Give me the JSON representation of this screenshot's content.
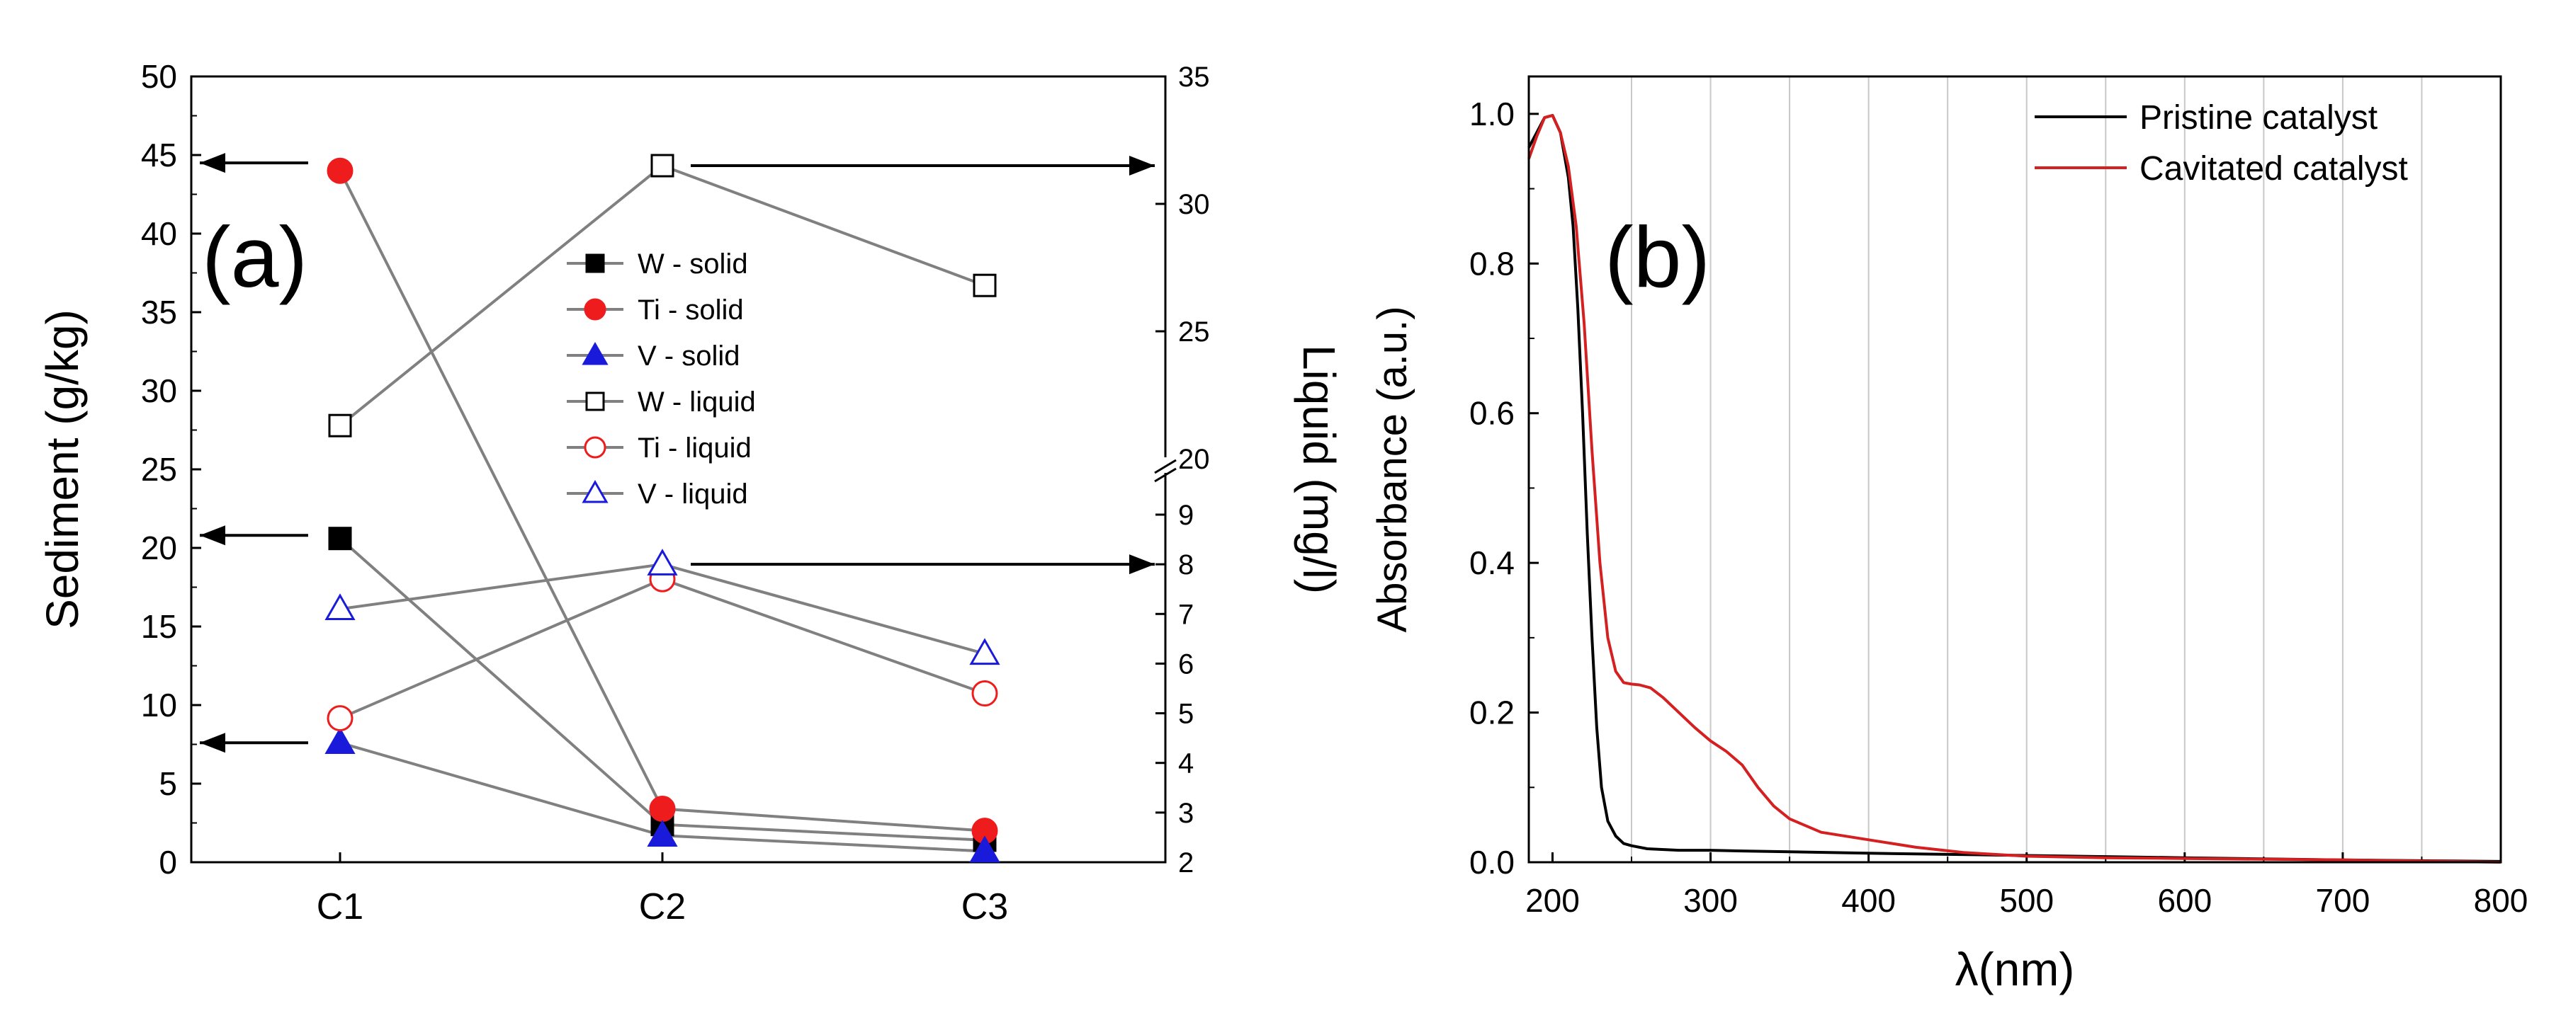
{
  "chart_data": [
    {
      "panel": "(a)",
      "type": "line",
      "categories": [
        "C1",
        "C2",
        "C3"
      ],
      "left_axis": {
        "label": "Sediment (g/kg)",
        "ylim": [
          0,
          50
        ],
        "ticks": [
          "0",
          "5",
          "10",
          "15",
          "20",
          "25",
          "30",
          "35",
          "40",
          "45",
          "50"
        ]
      },
      "right_axis": {
        "label": "Liquid (mg/l)",
        "broken": true,
        "lower_range": [
          2,
          9
        ],
        "upper_range": [
          20,
          35
        ],
        "lower_ticks": [
          "2",
          "3",
          "4",
          "5",
          "6",
          "7",
          "8",
          "9"
        ],
        "upper_ticks": [
          "20",
          "25",
          "30",
          "35"
        ]
      },
      "series": [
        {
          "name": "W - solid",
          "axis": "left",
          "marker": "square",
          "fill": "solid",
          "color": "#000000",
          "values": [
            20.6,
            2.4,
            1.4
          ]
        },
        {
          "name": "Ti - solid",
          "axis": "left",
          "marker": "circle",
          "fill": "solid",
          "color": "#ee1c1c",
          "values": [
            44,
            3.4,
            2.0
          ]
        },
        {
          "name": "V - solid",
          "axis": "left",
          "marker": "triangle",
          "fill": "solid",
          "color": "#1a1adb",
          "values": [
            7.6,
            1.7,
            0.7
          ]
        },
        {
          "name": "W - liquid",
          "axis": "right",
          "marker": "square",
          "fill": "open",
          "color": "#000000",
          "values": [
            21.3,
            31.5,
            26.8
          ]
        },
        {
          "name": "Ti - liquid",
          "axis": "right",
          "marker": "circle",
          "fill": "open",
          "color": "#ee1c1c",
          "values": [
            4.9,
            7.7,
            5.4
          ]
        },
        {
          "name": "V - liquid",
          "axis": "right",
          "marker": "triangle",
          "fill": "open",
          "color": "#1a1adb",
          "values": [
            7.1,
            8.0,
            6.2
          ]
        }
      ],
      "annotation_arrows": [
        {
          "direction": "left",
          "points_to": "left",
          "at_value": 44.5
        },
        {
          "direction": "left",
          "points_to": "left",
          "at_value": 20.8
        },
        {
          "direction": "left",
          "points_to": "left",
          "at_value": 7.6
        },
        {
          "direction": "right",
          "points_to": "right",
          "at_value": 31.5
        },
        {
          "direction": "right",
          "points_to": "right",
          "at_value": 8.0
        }
      ]
    },
    {
      "panel": "(b)",
      "type": "line",
      "xlabel": "λ(nm)",
      "ylabel": "Absorbance (a.u.)",
      "xlim": [
        185,
        800
      ],
      "ylim": [
        0,
        1.05
      ],
      "xticks": [
        "200",
        "300",
        "400",
        "500",
        "600",
        "700",
        "800"
      ],
      "yticks": [
        "0.0",
        "0.2",
        "0.4",
        "0.6",
        "0.8",
        "1.0"
      ],
      "series": [
        {
          "name": "Pristine catalyst",
          "color": "#000000",
          "x": [
            185,
            190,
            195,
            200,
            205,
            210,
            213,
            216,
            219,
            222,
            225,
            228,
            231,
            235,
            240,
            245,
            250,
            260,
            280,
            300,
            320,
            350,
            400,
            500,
            600,
            700,
            800
          ],
          "y": [
            0.955,
            0.975,
            0.995,
            0.998,
            0.975,
            0.915,
            0.85,
            0.74,
            0.6,
            0.44,
            0.3,
            0.18,
            0.1,
            0.055,
            0.035,
            0.025,
            0.022,
            0.018,
            0.016,
            0.016,
            0.015,
            0.014,
            0.012,
            0.009,
            0.006,
            0.003,
            0.001
          ]
        },
        {
          "name": "Cavitated catalyst",
          "color": "#d42020",
          "x": [
            185,
            190,
            195,
            200,
            205,
            210,
            215,
            220,
            225,
            230,
            235,
            240,
            245,
            250,
            255,
            262,
            270,
            280,
            290,
            300,
            310,
            320,
            330,
            340,
            350,
            370,
            400,
            430,
            460,
            500,
            550,
            600,
            700,
            800
          ],
          "y": [
            0.94,
            0.97,
            0.995,
            0.998,
            0.975,
            0.93,
            0.85,
            0.72,
            0.55,
            0.4,
            0.3,
            0.255,
            0.24,
            0.238,
            0.237,
            0.233,
            0.22,
            0.2,
            0.18,
            0.162,
            0.148,
            0.13,
            0.1,
            0.075,
            0.058,
            0.04,
            0.03,
            0.02,
            0.013,
            0.008,
            0.006,
            0.005,
            0.003,
            0.0
          ]
        }
      ]
    }
  ]
}
